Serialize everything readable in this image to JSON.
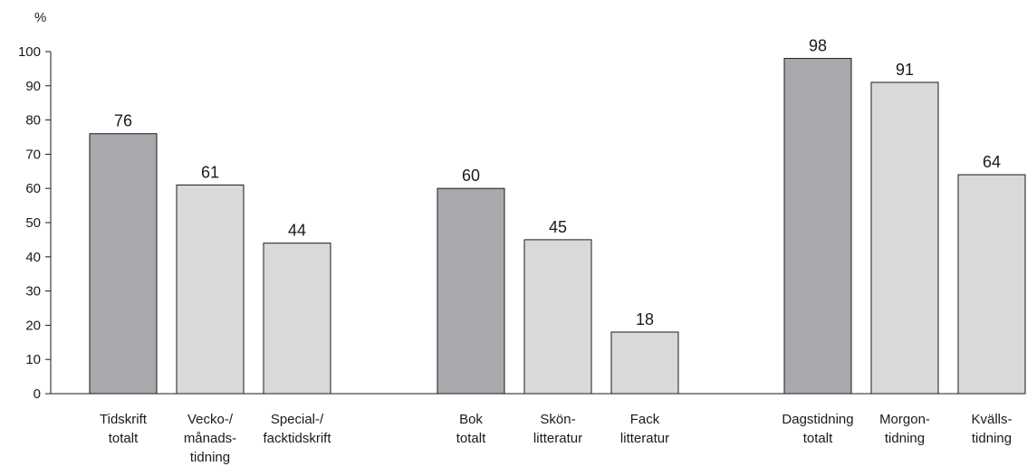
{
  "chart_data": {
    "type": "bar",
    "title": "",
    "xlabel": "",
    "ylabel": "%",
    "ylim": [
      0,
      100
    ],
    "yticks": [
      "0",
      "10",
      "20",
      "30",
      "40",
      "50",
      "60",
      "70",
      "80",
      "90",
      "100"
    ],
    "grid": false,
    "legend": "none",
    "colors": {
      "total": "#a8a9ad",
      "sub": "#d8d9db",
      "stroke": "#1a1a1a"
    },
    "groups": [
      {
        "bars": [
          {
            "label": [
              "Tidskrift",
              "totalt"
            ],
            "value": 76,
            "value_label": "76",
            "kind": "total"
          },
          {
            "label": [
              "Vecko-/",
              "månads-",
              "tidning"
            ],
            "value": 61,
            "value_label": "61",
            "kind": "sub"
          },
          {
            "label": [
              "Special-/",
              "facktidskrift"
            ],
            "value": 44,
            "value_label": "44",
            "kind": "sub"
          }
        ]
      },
      {
        "bars": [
          {
            "label": [
              "Bok",
              "totalt"
            ],
            "value": 60,
            "value_label": "60",
            "kind": "total"
          },
          {
            "label": [
              "Skön-",
              "litteratur"
            ],
            "value": 45,
            "value_label": "45",
            "kind": "sub"
          },
          {
            "label": [
              "Fack",
              "litteratur"
            ],
            "value": 18,
            "value_label": "18",
            "kind": "sub"
          }
        ]
      },
      {
        "bars": [
          {
            "label": [
              "Dagstidning",
              "totalt"
            ],
            "value": 98,
            "value_label": "98",
            "kind": "total"
          },
          {
            "label": [
              "Morgon-",
              "tidning"
            ],
            "value": 91,
            "value_label": "91",
            "kind": "sub"
          },
          {
            "label": [
              "Kvälls-",
              "tidning"
            ],
            "value": 64,
            "value_label": "64",
            "kind": "sub"
          }
        ]
      }
    ]
  }
}
